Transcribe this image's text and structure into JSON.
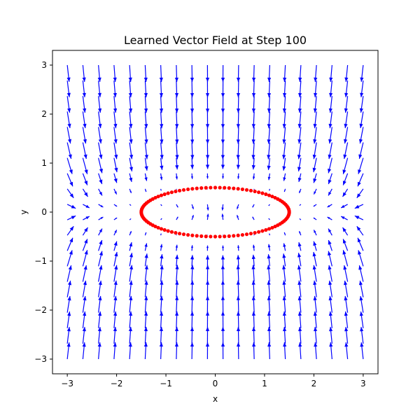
{
  "chart_data": {
    "type": "quiver",
    "title": "Learned Vector Field at Step 100",
    "xlabel": "x",
    "ylabel": "y",
    "xlim": [
      -3.3,
      3.3
    ],
    "ylim": [
      -3.3,
      3.3
    ],
    "xticks": [
      -3,
      -2,
      -1,
      0,
      1,
      2,
      3
    ],
    "yticks": [
      -3,
      -2,
      -1,
      0,
      1,
      2,
      3
    ],
    "xtick_labels": [
      "−3",
      "−2",
      "−1",
      "0",
      "1",
      "2",
      "3"
    ],
    "ytick_labels": [
      "−3",
      "−2",
      "−1",
      "0",
      "1",
      "2",
      "3"
    ],
    "grid": false,
    "legend": "none",
    "vector_field": {
      "x_range": [
        -3,
        3
      ],
      "y_range": [
        -3,
        3
      ],
      "grid_count": 20,
      "flow": "toward ellipse x²/1.5² + y²/0.5² = 1",
      "color": "#0000ff"
    },
    "target_points": {
      "shape": "ellipse",
      "center": [
        0,
        0
      ],
      "semi_axis_x": 1.5,
      "semi_axis_y": 0.5,
      "count": 100,
      "color": "#ff0000"
    }
  }
}
